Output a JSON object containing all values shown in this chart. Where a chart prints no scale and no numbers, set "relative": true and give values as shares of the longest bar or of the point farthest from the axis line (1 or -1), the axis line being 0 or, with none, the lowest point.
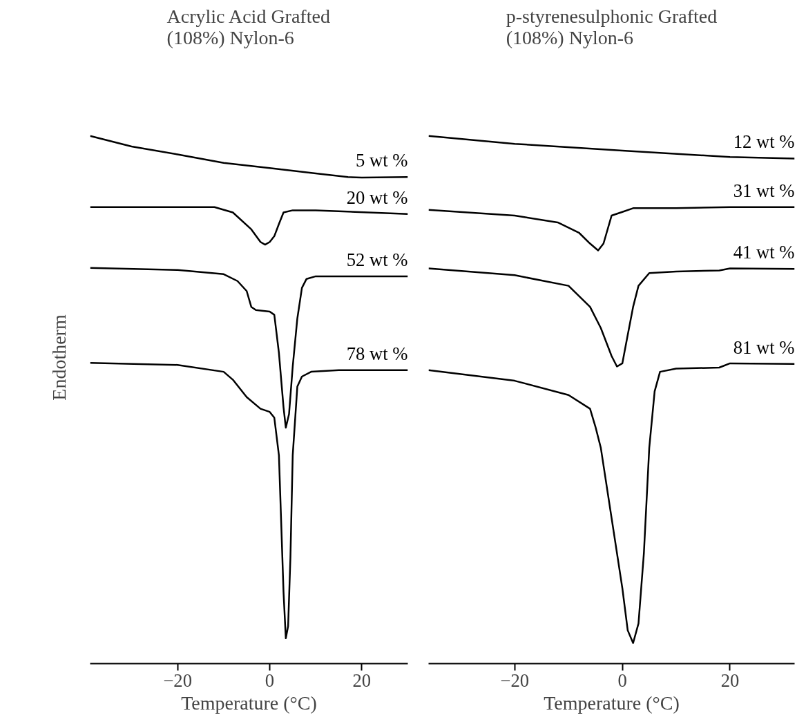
{
  "chart_data": [
    {
      "type": "line",
      "title": "Acrylic Acid Grafted\n(108%) Nylon-6",
      "xlabel": "Temperature (°C)",
      "ylabel": "Endotherm",
      "relative": true,
      "xlim": [
        -39,
        30
      ],
      "xticks": [
        -20,
        0,
        20
      ],
      "grid": false,
      "marker": "none",
      "line_style": "solid",
      "series": [
        {
          "name": "5 wt %",
          "color": "#000000",
          "x": [
            -39,
            -30,
            -20,
            -10,
            0,
            10,
            17,
            20,
            30
          ],
          "values": [
            1.0,
            0.98,
            0.965,
            0.949,
            0.939,
            0.929,
            0.922,
            0.921,
            0.922
          ]
        },
        {
          "name": "20 wt %",
          "color": "#000000",
          "x": [
            -39,
            -12,
            -8,
            -4,
            -2,
            -1,
            0,
            1,
            2,
            3,
            5,
            10,
            30
          ],
          "values": [
            0.865,
            0.865,
            0.855,
            0.823,
            0.799,
            0.794,
            0.799,
            0.81,
            0.833,
            0.855,
            0.859,
            0.859,
            0.852
          ]
        },
        {
          "name": "52 wt %",
          "color": "#000000",
          "x": [
            -39,
            -20,
            -10,
            -7,
            -5,
            -4,
            -3,
            0,
            1,
            2,
            3,
            3.5,
            4.2,
            5,
            6,
            7,
            8,
            10,
            30
          ],
          "values": [
            0.75,
            0.746,
            0.738,
            0.725,
            0.706,
            0.676,
            0.67,
            0.667,
            0.661,
            0.589,
            0.486,
            0.447,
            0.473,
            0.563,
            0.654,
            0.712,
            0.729,
            0.734,
            0.734
          ]
        },
        {
          "name": "78 wt %",
          "color": "#000000",
          "x": [
            -39,
            -20,
            -10,
            -8,
            -5,
            -2,
            0,
            1,
            2,
            2.5,
            3,
            3.5,
            4,
            4.5,
            5,
            6,
            7,
            9,
            15,
            30
          ],
          "values": [
            0.57,
            0.566,
            0.553,
            0.538,
            0.505,
            0.483,
            0.477,
            0.466,
            0.395,
            0.266,
            0.136,
            0.048,
            0.071,
            0.201,
            0.395,
            0.525,
            0.544,
            0.553,
            0.556,
            0.556
          ]
        }
      ]
    },
    {
      "type": "line",
      "title": "p-styrenesulphonic Grafted\n(108%) Nylon-6",
      "xlabel": "Temperature (°C)",
      "relative": true,
      "xlim": [
        -36,
        32
      ],
      "xticks": [
        -20,
        0,
        20
      ],
      "grid": false,
      "marker": "none",
      "line_style": "solid",
      "series": [
        {
          "name": "12 wt %",
          "color": "#000000",
          "x": [
            -36,
            -20,
            0,
            20,
            32
          ],
          "values": [
            1.0,
            0.985,
            0.972,
            0.96,
            0.957
          ]
        },
        {
          "name": "31 wt %",
          "color": "#000000",
          "x": [
            -36,
            -20,
            -12,
            -8,
            -6,
            -4.5,
            -3.5,
            -2,
            0,
            2,
            10,
            20,
            32
          ],
          "values": [
            0.86,
            0.849,
            0.836,
            0.816,
            0.796,
            0.783,
            0.796,
            0.849,
            0.856,
            0.863,
            0.863,
            0.865,
            0.865
          ]
        },
        {
          "name": "41 wt %",
          "color": "#000000",
          "x": [
            -36,
            -20,
            -10,
            -6,
            -4,
            -2,
            -1,
            0,
            1,
            2,
            3,
            5,
            10,
            18,
            20,
            32
          ],
          "values": [
            0.749,
            0.736,
            0.716,
            0.676,
            0.636,
            0.583,
            0.563,
            0.569,
            0.623,
            0.676,
            0.716,
            0.74,
            0.743,
            0.745,
            0.749,
            0.748
          ]
        },
        {
          "name": "81 wt %",
          "color": "#000000",
          "x": [
            -36,
            -20,
            -10,
            -6,
            -5,
            -4,
            -2,
            0,
            1,
            2,
            3,
            4,
            5,
            6,
            7,
            10,
            18,
            20,
            32
          ],
          "values": [
            0.556,
            0.536,
            0.509,
            0.483,
            0.449,
            0.409,
            0.276,
            0.143,
            0.063,
            0.039,
            0.076,
            0.209,
            0.409,
            0.516,
            0.553,
            0.559,
            0.561,
            0.569,
            0.568
          ]
        }
      ]
    }
  ]
}
